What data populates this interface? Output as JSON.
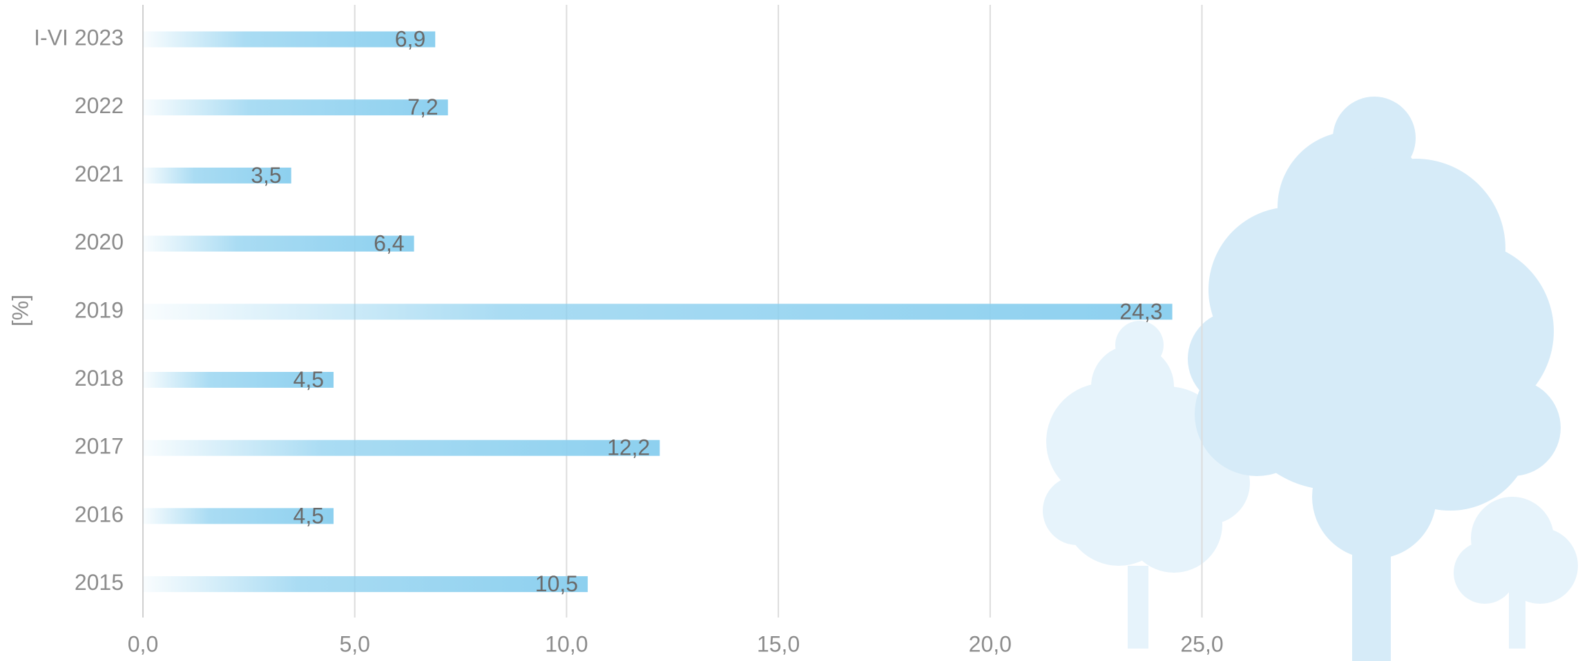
{
  "chart_data": {
    "type": "bar",
    "orientation": "horizontal",
    "y_label": "[%]",
    "categories": [
      "I-VI 2023",
      "2022",
      "2021",
      "2020",
      "2019",
      "2018",
      "2017",
      "2016",
      "2015"
    ],
    "values": [
      6.9,
      7.2,
      3.5,
      6.4,
      24.3,
      4.5,
      12.2,
      4.5,
      10.5
    ],
    "value_labels": [
      "6,9",
      "7,2",
      "3,5",
      "6,4",
      "24,3",
      "4,5",
      "12,2",
      "4,5",
      "10,5"
    ],
    "color": "#8dd0ef",
    "xlim": [
      0,
      34
    ],
    "xticks": [
      {
        "value": 0,
        "label": "0,0"
      },
      {
        "value": 5,
        "label": "5,0"
      },
      {
        "value": 10,
        "label": "10,0"
      },
      {
        "value": 15,
        "label": "15,0"
      },
      {
        "value": 20,
        "label": "20,0"
      },
      {
        "value": 25,
        "label": "25,0"
      }
    ],
    "grid": true
  }
}
